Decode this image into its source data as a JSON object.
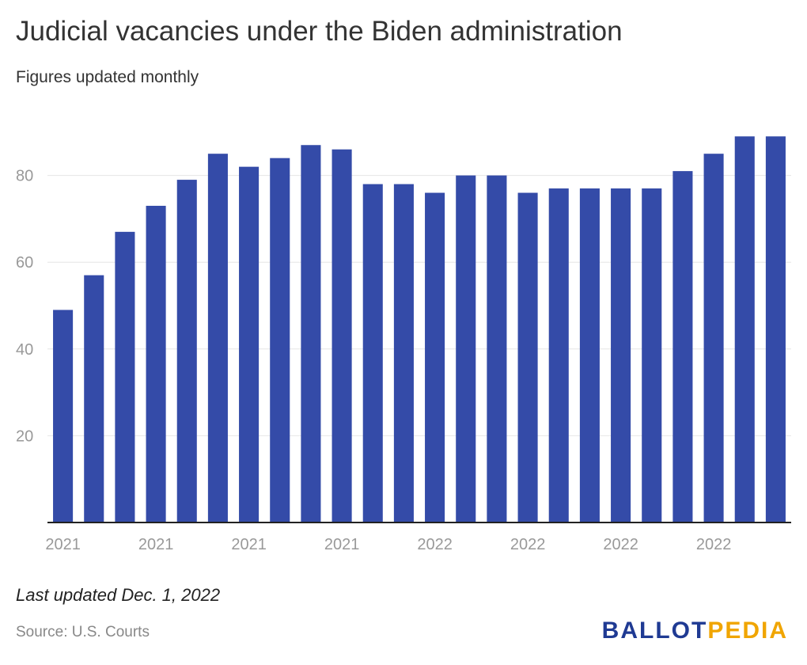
{
  "title": "Judicial vacancies under the Biden administration",
  "subtitle": "Figures updated monthly",
  "note": "Last updated Dec. 1, 2022",
  "source": "Source: U.S. Courts",
  "logo": {
    "part1": "BALLOT",
    "part2": "PEDIA"
  },
  "colors": {
    "bar": "#344ba8",
    "grid": "#e6e6e6",
    "axis": "#222222",
    "tick_text": "#999999",
    "logo_blue": "#1f3a93",
    "logo_gold": "#f0a500"
  },
  "chart_data": {
    "type": "bar",
    "title": "Judicial vacancies under the Biden administration",
    "subtitle": "Figures updated monthly",
    "categories": [
      "2021",
      "2021",
      "2021",
      "2021",
      "2021",
      "2021",
      "2021",
      "2021",
      "2021",
      "2021",
      "2021",
      "2022",
      "2022",
      "2022",
      "2022",
      "2022",
      "2022",
      "2022",
      "2022",
      "2022",
      "2022",
      "2022",
      "2022",
      "2022"
    ],
    "x_tick_labels": [
      {
        "index": 0,
        "label": "2021"
      },
      {
        "index": 3,
        "label": "2021"
      },
      {
        "index": 6,
        "label": "2021"
      },
      {
        "index": 9,
        "label": "2021"
      },
      {
        "index": 12,
        "label": "2022"
      },
      {
        "index": 15,
        "label": "2022"
      },
      {
        "index": 18,
        "label": "2022"
      },
      {
        "index": 21,
        "label": "2022"
      }
    ],
    "values": [
      49,
      57,
      67,
      73,
      79,
      85,
      82,
      84,
      87,
      86,
      78,
      78,
      76,
      80,
      80,
      76,
      77,
      77,
      77,
      77,
      81,
      85,
      89,
      89
    ],
    "y_ticks": [
      20,
      40,
      60,
      80
    ],
    "ylim": [
      0,
      90
    ],
    "xlabel": "",
    "ylabel": "",
    "grid": true,
    "legend": "none"
  }
}
